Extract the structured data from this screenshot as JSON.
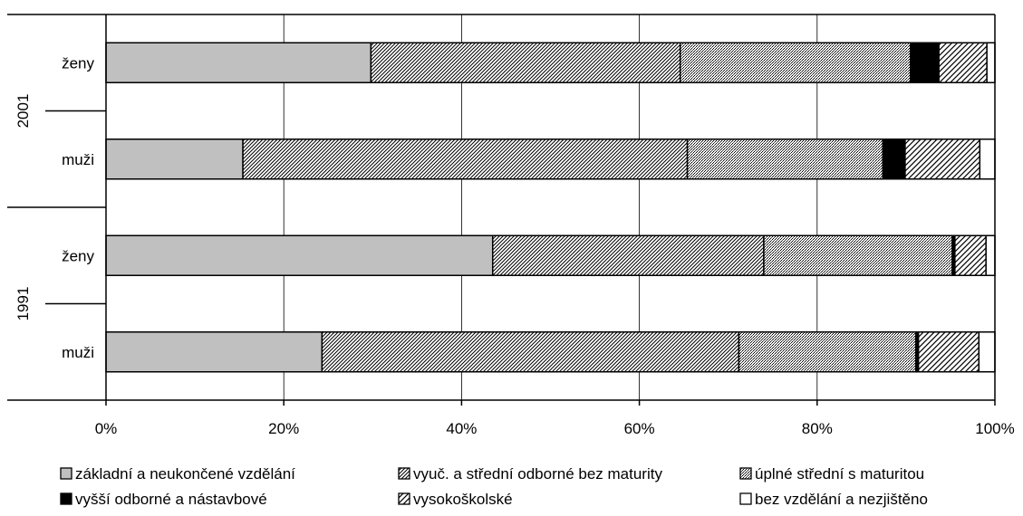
{
  "chart_data": {
    "type": "bar",
    "orientation": "horizontal",
    "stacked": "percent",
    "xlim": [
      0,
      100
    ],
    "x_ticks": [
      "0%",
      "20%",
      "40%",
      "60%",
      "80%",
      "100%"
    ],
    "grid": "vertical",
    "legend_position": "bottom",
    "groups": [
      {
        "label": "2001",
        "categories": [
          "ženy",
          "muži"
        ]
      },
      {
        "label": "1991",
        "categories": [
          "ženy",
          "muži"
        ]
      }
    ],
    "rows": [
      {
        "group": "2001",
        "label": "ženy"
      },
      {
        "group": "2001",
        "label": "muži"
      },
      {
        "group": "1991",
        "label": "ženy"
      },
      {
        "group": "1991",
        "label": "muži"
      }
    ],
    "series": [
      {
        "name": "základní a neukončené vzdělání",
        "color": "#c0c0c0",
        "pattern": "solid",
        "values": [
          29.8,
          15.4,
          43.5,
          24.3
        ]
      },
      {
        "name": "vyuč. a střední odborné bez maturity",
        "color": "#ffffff",
        "pattern": "diag-dense",
        "values": [
          34.8,
          50.0,
          30.5,
          46.9
        ]
      },
      {
        "name": "úplné střední s maturitou",
        "color": "#ffffff",
        "pattern": "dots",
        "values": [
          25.9,
          22.0,
          21.2,
          19.9
        ]
      },
      {
        "name": "vyšší odborné a nástavbové",
        "color": "#000000",
        "pattern": "solid",
        "values": [
          3.2,
          2.5,
          0.3,
          0.3
        ]
      },
      {
        "name": "vysokoškolské",
        "color": "#ffffff",
        "pattern": "diag-wide",
        "values": [
          5.4,
          8.4,
          3.5,
          6.8
        ]
      },
      {
        "name": "bez vzdělání a nezjištěno",
        "color": "#ffffff",
        "pattern": "none",
        "values": [
          0.9,
          1.7,
          1.0,
          1.8
        ]
      }
    ]
  }
}
